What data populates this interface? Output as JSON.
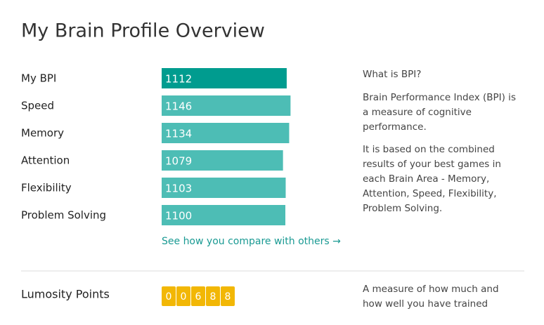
{
  "header": {
    "title": "My Brain Profile Overview"
  },
  "profile": {
    "rows": [
      {
        "label": "My BPI",
        "value": 1112,
        "color": "#009c8f"
      },
      {
        "label": "Speed",
        "value": 1146,
        "color": "#4dbdb5"
      },
      {
        "label": "Memory",
        "value": 1134,
        "color": "#4dbdb5"
      },
      {
        "label": "Attention",
        "value": 1079,
        "color": "#4dbdb5"
      },
      {
        "label": "Flexibility",
        "value": 1103,
        "color": "#4dbdb5"
      },
      {
        "label": "Problem Solving",
        "value": 1100,
        "color": "#4dbdb5"
      }
    ],
    "link": "See how you compare with others →"
  },
  "info": {
    "question": "What is BPI?",
    "paragraphs": [
      [
        "Brain Performance Index (BPI) is",
        "a measure of cognitive",
        "performance."
      ],
      [
        "It is based on the combined",
        "results of your best games in",
        "each Brain Area - Memory,",
        "Attention, Speed, Flexibility,",
        "Problem Solving."
      ]
    ]
  },
  "points": {
    "label": "Lumosity Points",
    "digits": [
      "0",
      "0",
      "6",
      "8",
      "8"
    ],
    "description": [
      "A measure of how much and",
      "how well you have trained"
    ]
  }
}
